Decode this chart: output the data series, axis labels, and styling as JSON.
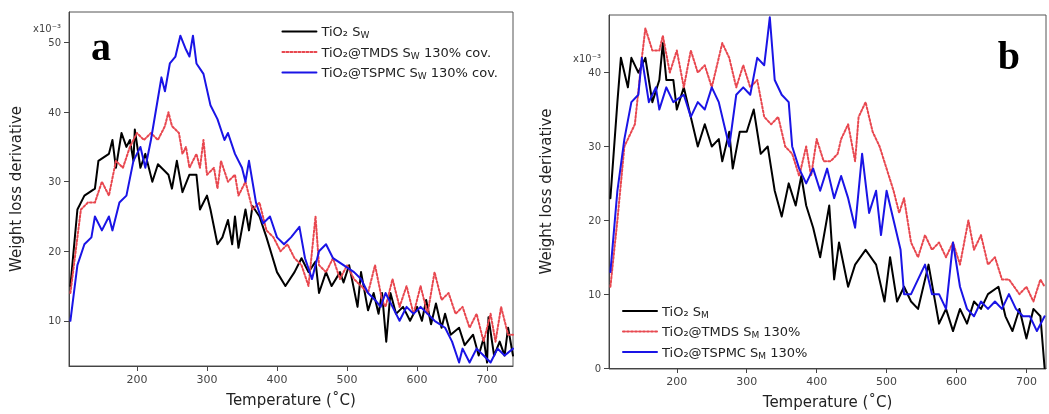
{
  "chart_data": [
    {
      "type": "line",
      "xlabel": "Temperature (˚C)",
      "ylabel": "Weight loss derivative",
      "annotations": [
        "a",
        "x10⁻³"
      ],
      "legend": "top right",
      "grid": false,
      "marker": "none",
      "xlim": [
        103,
        737
      ],
      "xticks": [
        200,
        300,
        400,
        500,
        600,
        700
      ],
      "ylim": [
        3.5,
        54.4
      ],
      "yticks": [
        10,
        20,
        30,
        40,
        50
      ],
      "series": [
        {
          "name": "TiO₂ S$_{W}$",
          "color": "#000000",
          "line_style": "solid",
          "x": [
            105,
            115,
            125,
            140,
            145,
            160,
            165,
            170,
            178,
            185,
            190,
            195,
            197,
            205,
            212,
            222,
            230,
            245,
            250,
            257,
            265,
            275,
            285,
            290,
            300,
            305,
            315,
            322,
            330,
            336,
            340,
            345,
            355,
            360,
            365,
            375,
            385,
            400,
            412,
            425,
            435,
            445,
            455,
            460,
            470,
            478,
            490,
            495,
            503,
            515,
            520,
            530,
            538,
            545,
            550,
            556,
            562,
            570,
            580,
            590,
            600,
            607,
            613,
            620,
            627,
            635,
            640,
            648,
            660,
            668,
            680,
            688,
            695,
            700,
            702,
            710,
            718,
            725,
            730,
            737
          ],
          "values": [
            15,
            26,
            28,
            29,
            33,
            34,
            36,
            32,
            37,
            35,
            36,
            33,
            37.5,
            32,
            34,
            30,
            32.5,
            31,
            29,
            33,
            28.5,
            31,
            31,
            26,
            28,
            26,
            21,
            22,
            24.5,
            21,
            25,
            20.5,
            26,
            23,
            26.5,
            25,
            22,
            17,
            15,
            17,
            19,
            17,
            18.5,
            14,
            17,
            15,
            17,
            15.5,
            18,
            12,
            17,
            11.5,
            14,
            11,
            14,
            7,
            14,
            11,
            12,
            10,
            12,
            10,
            13,
            9.5,
            12.5,
            9,
            11,
            8,
            9,
            6.5,
            8,
            5,
            7.5,
            4,
            10.5,
            5,
            7,
            5,
            9,
            5
          ]
        },
        {
          "name": "TiO₂@TMDS S$_{W}$ 130% cov.",
          "color": "#e8474f",
          "line_style": "dotted",
          "x": [
            105,
            120,
            130,
            140,
            150,
            160,
            170,
            180,
            190,
            200,
            210,
            220,
            230,
            240,
            245,
            250,
            260,
            265,
            270,
            275,
            285,
            290,
            295,
            300,
            310,
            315,
            320,
            330,
            340,
            345,
            355,
            365,
            375,
            385,
            395,
            405,
            415,
            425,
            435,
            445,
            455,
            460,
            470,
            480,
            490,
            500,
            510,
            520,
            530,
            540,
            550,
            555,
            565,
            575,
            585,
            595,
            605,
            615,
            625,
            635,
            645,
            655,
            665,
            675,
            685,
            695,
            705,
            712,
            720,
            730,
            737
          ],
          "values": [
            14,
            26,
            27,
            27,
            30,
            28,
            33,
            32,
            35,
            37,
            36,
            37,
            36,
            38,
            40,
            38,
            37,
            34,
            35,
            32,
            34,
            32,
            36,
            31,
            32,
            29,
            33,
            30,
            31,
            28,
            30,
            26,
            27,
            23,
            22,
            20,
            21,
            19,
            18,
            15,
            25,
            18,
            17,
            19,
            16,
            18,
            16,
            15,
            14,
            18,
            13,
            12,
            16,
            12,
            15,
            11,
            15,
            11,
            17,
            13,
            14,
            11,
            12,
            9,
            11,
            7,
            11,
            7,
            12,
            8,
            8
          ]
        },
        {
          "name": "TiO₂@TSPMC S$_{W}$ 130% cov.",
          "color": "#1a14e6",
          "line_style": "solid",
          "x": [
            105,
            115,
            125,
            135,
            140,
            150,
            160,
            165,
            175,
            185,
            195,
            205,
            212,
            220,
            230,
            235,
            240,
            247,
            255,
            262,
            270,
            275,
            280,
            285,
            295,
            305,
            315,
            325,
            330,
            340,
            350,
            355,
            360,
            370,
            380,
            390,
            400,
            410,
            420,
            432,
            440,
            450,
            460,
            470,
            480,
            495,
            510,
            520,
            530,
            540,
            548,
            555,
            565,
            575,
            585,
            595,
            605,
            615,
            625,
            640,
            650,
            660,
            665,
            675,
            685,
            695,
            705,
            715,
            725,
            737
          ],
          "values": [
            10,
            18,
            21,
            22,
            25,
            23,
            25,
            23,
            27,
            28,
            33,
            35,
            32,
            36,
            42,
            45,
            43,
            47,
            48,
            51,
            49,
            48,
            51,
            47,
            45.5,
            41,
            39,
            36,
            37,
            34,
            32,
            30,
            33,
            27,
            24,
            25,
            22,
            21,
            22,
            23.5,
            19,
            16,
            20,
            21,
            19,
            18,
            17,
            16,
            14,
            13,
            12,
            14,
            12,
            10,
            12,
            11,
            12,
            11,
            10,
            9,
            7,
            4,
            6,
            4,
            6,
            5,
            4,
            6,
            5,
            6
          ]
        }
      ]
    },
    {
      "type": "line",
      "xlabel": "Temperature (˚C)",
      "ylabel": "Weight loss derivative",
      "annotations": [
        "b",
        "x10⁻³"
      ],
      "legend": "bottom left",
      "grid": false,
      "marker": "none",
      "xlim": [
        103,
        728
      ],
      "xticks": [
        200,
        300,
        400,
        500,
        600,
        700
      ],
      "ylim": [
        0,
        47.8
      ],
      "yticks": [
        0,
        10,
        20,
        30,
        40
      ],
      "series": [
        {
          "name": "TiO₂ S$_{M}$",
          "color": "#000000",
          "line_style": "solid",
          "x": [
            105,
            115,
            120,
            130,
            135,
            145,
            155,
            165,
            175,
            180,
            185,
            195,
            200,
            210,
            220,
            230,
            240,
            250,
            260,
            265,
            275,
            280,
            290,
            300,
            310,
            320,
            330,
            340,
            350,
            360,
            370,
            378,
            385,
            395,
            405,
            418,
            425,
            432,
            445,
            455,
            470,
            485,
            497,
            505,
            515,
            525,
            535,
            545,
            560,
            575,
            585,
            595,
            605,
            615,
            625,
            635,
            645,
            660,
            670,
            680,
            690,
            700,
            710,
            720,
            726
          ],
          "values": [
            23,
            36,
            42,
            38,
            42,
            40,
            42,
            36,
            39,
            44,
            39,
            39,
            35,
            38,
            34,
            30,
            33,
            30,
            31,
            28,
            32,
            27,
            32,
            32,
            35,
            29,
            30,
            24,
            20.5,
            25,
            22,
            26,
            22,
            19,
            15,
            22,
            12,
            17,
            11,
            14,
            16,
            14,
            9,
            15,
            9,
            11,
            9,
            8,
            14,
            6,
            8,
            5,
            8,
            6,
            9,
            8,
            10,
            11,
            7,
            5,
            8,
            4,
            8,
            7,
            0
          ]
        },
        {
          "name": "TiO₂@TMDS S$_{M}$ 130%",
          "color": "#e8474f",
          "line_style": "dotted",
          "x": [
            105,
            115,
            125,
            140,
            150,
            155,
            165,
            175,
            180,
            190,
            200,
            210,
            220,
            230,
            240,
            250,
            260,
            265,
            275,
            285,
            295,
            305,
            315,
            325,
            335,
            345,
            355,
            365,
            375,
            385,
            392,
            400,
            410,
            420,
            430,
            435,
            445,
            455,
            460,
            470,
            480,
            490,
            500,
            510,
            518,
            525,
            535,
            545,
            555,
            565,
            575,
            585,
            595,
            605,
            617,
            625,
            635,
            645,
            655,
            665,
            675,
            690,
            700,
            710,
            720,
            726
          ],
          "values": [
            11,
            20,
            30,
            33,
            42,
            46,
            43,
            43,
            45,
            40,
            43,
            38,
            43,
            40,
            41,
            38,
            42,
            44,
            42,
            38,
            41,
            38,
            39,
            34,
            33,
            34,
            30,
            29,
            26,
            30,
            26,
            31,
            28,
            28,
            29,
            31,
            33,
            28,
            34,
            36,
            32,
            30,
            27,
            24,
            21,
            23,
            17,
            15,
            18,
            16,
            17,
            15,
            17,
            14,
            20,
            16,
            18,
            14,
            15,
            12,
            12,
            10,
            11,
            9,
            12,
            11
          ]
        },
        {
          "name": "TiO₂@TSPMC S$_{M}$ 130%",
          "color": "#1a14e6",
          "line_style": "solid",
          "x": [
            105,
            115,
            125,
            135,
            145,
            150,
            160,
            170,
            175,
            185,
            195,
            210,
            220,
            230,
            240,
            250,
            260,
            270,
            275,
            285,
            295,
            305,
            315,
            325,
            330,
            333,
            340,
            350,
            360,
            365,
            375,
            385,
            395,
            405,
            415,
            425,
            435,
            445,
            455,
            465,
            475,
            485,
            492,
            500,
            510,
            520,
            525,
            535,
            545,
            555,
            565,
            575,
            585,
            595,
            605,
            615,
            625,
            635,
            645,
            655,
            665,
            675,
            685,
            695,
            705,
            715,
            726
          ],
          "values": [
            13,
            24,
            31,
            36,
            37,
            42,
            36,
            38,
            35,
            38,
            36,
            37,
            34,
            36,
            35,
            38,
            36,
            32,
            30,
            37,
            38,
            37,
            42,
            41,
            45,
            47.5,
            39,
            37,
            36,
            30,
            27,
            25,
            27,
            24,
            27,
            23,
            26,
            23,
            19,
            29,
            21,
            24,
            18,
            24,
            20,
            16,
            10,
            10,
            12,
            14,
            10,
            10,
            8,
            17,
            11,
            8,
            7,
            9,
            8,
            9,
            8,
            10,
            8,
            7,
            7,
            5,
            7
          ]
        }
      ]
    }
  ]
}
